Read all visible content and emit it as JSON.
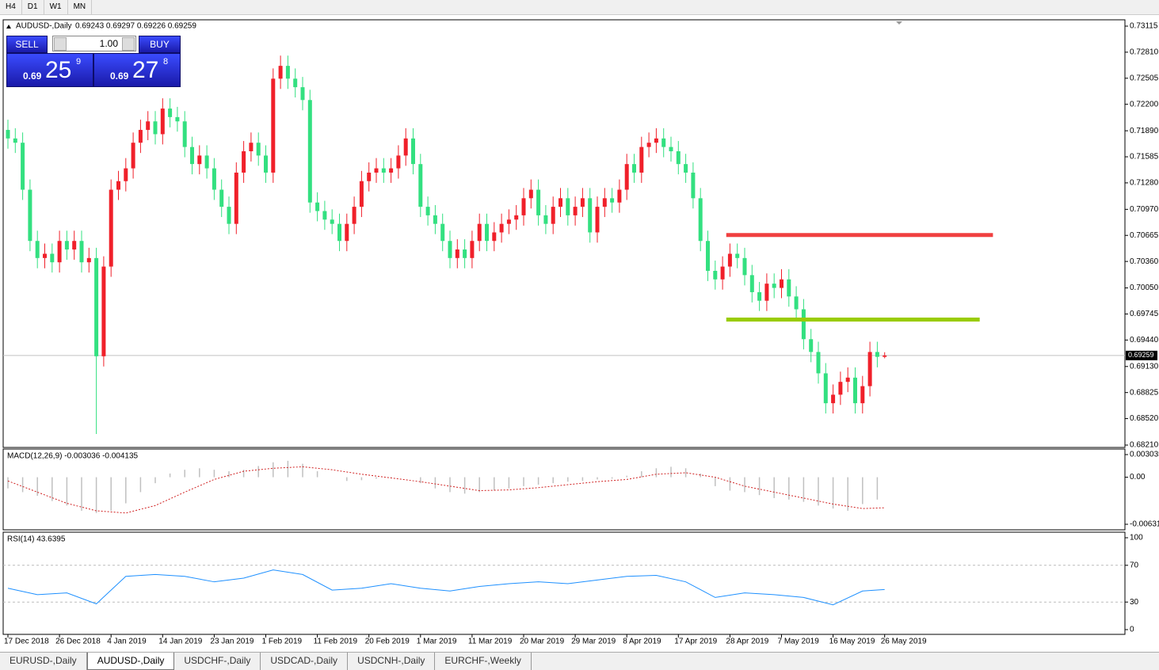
{
  "toolbar": [
    "H4",
    "D1",
    "W1",
    "MN"
  ],
  "tabs": [
    "EURUSD-,Daily",
    "AUDUSD-,Daily",
    "USDCHF-,Daily",
    "USDCAD-,Daily",
    "USDCNH-,Daily",
    "EURCHF-,Weekly"
  ],
  "active_tab": "AUDUSD-,Daily",
  "trade_panel": {
    "sell_label": "SELL",
    "lot": "1.00",
    "buy_label": "BUY",
    "bid": {
      "prefix": "0.69",
      "big": "25",
      "small": "9"
    },
    "ask": {
      "prefix": "0.69",
      "big": "27",
      "small": "8"
    }
  },
  "chart_data": {
    "type": "candlestick",
    "title": "AUDUSD-,Daily",
    "ohlc_text": "0.69243 0.69297 0.69226 0.69259",
    "up_color": "#f0202a",
    "down_color": "#33e080",
    "categories": [
      "17 Dec 2018",
      null,
      null,
      null,
      null,
      null,
      null,
      "26 Dec 2018",
      null,
      null,
      null,
      null,
      null,
      null,
      "4 Jan 2019",
      null,
      null,
      null,
      null,
      null,
      null,
      "14 Jan 2019",
      null,
      null,
      null,
      null,
      null,
      null,
      "23 Jan 2019",
      null,
      null,
      null,
      null,
      null,
      null,
      "1 Feb 2019",
      null,
      null,
      null,
      null,
      null,
      null,
      "11 Feb 2019",
      null,
      null,
      null,
      null,
      null,
      null,
      "20 Feb 2019",
      null,
      null,
      null,
      null,
      null,
      null,
      "1 Mar 2019",
      null,
      null,
      null,
      null,
      null,
      null,
      "11 Mar 2019",
      null,
      null,
      null,
      null,
      null,
      null,
      "20 Mar 2019",
      null,
      null,
      null,
      null,
      null,
      null,
      "29 Mar 2019",
      null,
      null,
      null,
      null,
      null,
      null,
      "8 Apr 2019",
      null,
      null,
      null,
      null,
      null,
      null,
      "17 Apr 2019",
      null,
      null,
      null,
      null,
      null,
      null,
      "28 Apr 2019",
      null,
      null,
      null,
      null,
      null,
      null,
      "7 May 2019",
      null,
      null,
      null,
      null,
      null,
      null,
      "16 May 2019",
      null,
      null,
      null,
      null,
      null,
      null,
      "26 May 2019"
    ],
    "open": [
      0.719,
      0.718,
      0.7175,
      0.712,
      0.706,
      0.704,
      0.7045,
      0.7035,
      0.706,
      0.705,
      0.706,
      0.7035,
      0.704,
      0.6925,
      0.703,
      0.712,
      0.713,
      0.7145,
      0.7175,
      0.719,
      0.72,
      0.7185,
      0.7215,
      0.7205,
      0.72,
      0.717,
      0.715,
      0.716,
      0.7145,
      0.712,
      0.71,
      0.708,
      0.714,
      0.7165,
      0.7175,
      0.716,
      0.714,
      0.725,
      0.7265,
      0.725,
      0.724,
      0.7225,
      0.7105,
      0.7095,
      0.7085,
      0.708,
      0.706,
      0.708,
      0.71,
      0.713,
      0.714,
      0.7145,
      0.714,
      0.7145,
      0.716,
      0.718,
      0.715,
      0.71,
      0.709,
      0.708,
      0.706,
      0.704,
      0.705,
      0.704,
      0.706,
      0.708,
      0.706,
      0.707,
      0.708,
      0.7085,
      0.709,
      0.711,
      0.712,
      0.709,
      0.708,
      0.71,
      0.711,
      0.709,
      0.71,
      0.711,
      0.707,
      0.71,
      0.711,
      0.7105,
      0.712,
      0.715,
      0.714,
      0.717,
      0.7175,
      0.718,
      0.717,
      0.7165,
      0.715,
      0.714,
      0.711,
      0.706,
      0.7025,
      0.7015,
      0.703,
      0.7045,
      0.704,
      0.702,
      0.7,
      0.699,
      0.701,
      0.7005,
      0.7015,
      0.6995,
      0.698,
      0.6945,
      0.693,
      0.6905,
      0.687,
      0.688,
      0.6895,
      0.69,
      0.687,
      0.689,
      0.693,
      0.69243
    ],
    "high": [
      0.7202,
      0.7192,
      0.7187,
      0.7132,
      0.7072,
      0.7057,
      0.7057,
      0.7072,
      0.7072,
      0.7072,
      0.7072,
      0.7052,
      0.7052,
      0.7042,
      0.7132,
      0.7142,
      0.7157,
      0.7187,
      0.7202,
      0.7212,
      0.7212,
      0.7227,
      0.7227,
      0.7217,
      0.7212,
      0.7182,
      0.7172,
      0.7172,
      0.7157,
      0.7132,
      0.7112,
      0.7152,
      0.7177,
      0.7187,
      0.7187,
      0.7172,
      0.7262,
      0.7277,
      0.7277,
      0.7262,
      0.7252,
      0.7237,
      0.7117,
      0.7107,
      0.7097,
      0.7092,
      0.7092,
      0.7112,
      0.7142,
      0.7152,
      0.7157,
      0.7157,
      0.7157,
      0.7172,
      0.7192,
      0.7192,
      0.7162,
      0.7112,
      0.7102,
      0.7092,
      0.7072,
      0.7062,
      0.7062,
      0.7072,
      0.7092,
      0.7092,
      0.7082,
      0.7092,
      0.7097,
      0.7102,
      0.7122,
      0.7132,
      0.7132,
      0.7102,
      0.7112,
      0.7122,
      0.7122,
      0.7112,
      0.7122,
      0.7122,
      0.7112,
      0.7122,
      0.7122,
      0.7132,
      0.7162,
      0.7162,
      0.7182,
      0.7187,
      0.7192,
      0.7192,
      0.7182,
      0.7177,
      0.7162,
      0.7152,
      0.7122,
      0.7072,
      0.7037,
      0.7042,
      0.7057,
      0.7057,
      0.7052,
      0.7032,
      0.7012,
      0.7022,
      0.7022,
      0.7027,
      0.7027,
      0.7007,
      0.6992,
      0.6957,
      0.6942,
      0.6917,
      0.6892,
      0.6907,
      0.6912,
      0.6912,
      0.6902,
      0.6942,
      0.6942,
      0.69297
    ],
    "low": [
      0.7168,
      0.7163,
      0.7108,
      0.7048,
      0.7028,
      0.7028,
      0.7023,
      0.7023,
      0.7038,
      0.7038,
      0.7023,
      0.7023,
      0.6834,
      0.6913,
      0.7018,
      0.7108,
      0.7118,
      0.7133,
      0.7163,
      0.7178,
      0.7173,
      0.7173,
      0.7193,
      0.7188,
      0.7158,
      0.7138,
      0.7138,
      0.7133,
      0.7108,
      0.7088,
      0.7068,
      0.7068,
      0.7128,
      0.7153,
      0.7148,
      0.7128,
      0.7128,
      0.7238,
      0.7238,
      0.7228,
      0.7213,
      0.7093,
      0.7083,
      0.7073,
      0.7068,
      0.7048,
      0.7048,
      0.7068,
      0.7088,
      0.7118,
      0.7128,
      0.7128,
      0.7128,
      0.7133,
      0.7148,
      0.7138,
      0.7088,
      0.7078,
      0.7068,
      0.7048,
      0.7028,
      0.7028,
      0.7028,
      0.7028,
      0.7048,
      0.7048,
      0.7048,
      0.7058,
      0.7068,
      0.7073,
      0.7078,
      0.7098,
      0.7078,
      0.7068,
      0.7068,
      0.7088,
      0.7078,
      0.7078,
      0.7088,
      0.7058,
      0.7058,
      0.7088,
      0.7093,
      0.7093,
      0.7108,
      0.7128,
      0.7128,
      0.7158,
      0.7163,
      0.7158,
      0.7153,
      0.7138,
      0.7128,
      0.7098,
      0.7048,
      0.7013,
      0.7003,
      0.7003,
      0.7018,
      0.7028,
      0.7008,
      0.6988,
      0.6978,
      0.6978,
      0.6993,
      0.6993,
      0.6983,
      0.6968,
      0.6933,
      0.6918,
      0.6893,
      0.6858,
      0.6858,
      0.6868,
      0.6883,
      0.6858,
      0.6858,
      0.6878,
      0.6912,
      0.69226
    ],
    "close": [
      0.718,
      0.7175,
      0.712,
      0.706,
      0.704,
      0.7045,
      0.7035,
      0.706,
      0.705,
      0.706,
      0.7035,
      0.704,
      0.6925,
      0.703,
      0.712,
      0.713,
      0.7145,
      0.7175,
      0.719,
      0.72,
      0.7185,
      0.7215,
      0.7205,
      0.72,
      0.717,
      0.715,
      0.716,
      0.7145,
      0.712,
      0.71,
      0.708,
      0.714,
      0.7165,
      0.7175,
      0.716,
      0.714,
      0.725,
      0.7265,
      0.725,
      0.724,
      0.7225,
      0.7105,
      0.7095,
      0.7085,
      0.708,
      0.706,
      0.708,
      0.71,
      0.713,
      0.714,
      0.7145,
      0.714,
      0.7145,
      0.716,
      0.718,
      0.715,
      0.71,
      0.709,
      0.708,
      0.706,
      0.704,
      0.705,
      0.704,
      0.706,
      0.708,
      0.706,
      0.707,
      0.708,
      0.7085,
      0.709,
      0.711,
      0.712,
      0.709,
      0.708,
      0.71,
      0.711,
      0.709,
      0.71,
      0.711,
      0.707,
      0.71,
      0.711,
      0.7105,
      0.712,
      0.715,
      0.714,
      0.717,
      0.7175,
      0.718,
      0.717,
      0.7165,
      0.715,
      0.714,
      0.711,
      0.706,
      0.7025,
      0.7015,
      0.703,
      0.7045,
      0.704,
      0.702,
      0.7,
      0.699,
      0.701,
      0.7005,
      0.7015,
      0.6995,
      0.698,
      0.6945,
      0.693,
      0.6905,
      0.687,
      0.688,
      0.6895,
      0.69,
      0.687,
      0.689,
      0.693,
      0.69243,
      0.69259
    ],
    "ylim": [
      0.6821,
      0.73115
    ],
    "yticks": [
      0.73115,
      {
        "value": 0.7281,
        "label": "0.72810"
      },
      0.72505,
      {
        "value": 0.722,
        "label": "0.72200"
      },
      {
        "value": 0.7189,
        "label": "0.71890"
      },
      0.71585,
      {
        "value": 0.7128,
        "label": "0.71280"
      },
      {
        "value": 0.7097,
        "label": "0.70970"
      },
      0.70665,
      {
        "value": 0.7036,
        "label": "0.70360"
      },
      {
        "value": 0.7005,
        "label": "0.70050"
      },
      0.69745,
      {
        "value": 0.6944,
        "label": "0.69440"
      },
      {
        "value": 0.6913,
        "label": "0.69130"
      },
      0.68825,
      {
        "value": 0.6852,
        "label": "0.68520"
      },
      {
        "value": 0.6821,
        "label": "0.68210"
      }
    ],
    "current_price": 0.69259,
    "hlines": [
      {
        "value": 0.7067,
        "x": [
          97.5,
          133.7
        ],
        "color": "#f04040"
      },
      {
        "value": 0.6968,
        "x": [
          97.5,
          131.9
        ],
        "color": "#99cc00"
      }
    ],
    "macd": {
      "label": "MACD(12,26,9) -0.003036 -0.004135",
      "ylim": [
        -0.006311,
        0.003035
      ],
      "yticks": [
        0.003035,
        {
          "value": 0,
          "label": "0.00"
        },
        -0.006311
      ],
      "histogram": {
        "color": "#c0c0c0",
        "x": [
          0,
          2,
          4,
          6,
          8,
          10,
          12,
          14,
          16,
          18,
          20,
          22,
          24,
          26,
          28,
          30,
          32,
          34,
          36,
          38,
          40,
          42,
          44,
          46,
          48,
          50,
          52,
          54,
          56,
          58,
          60,
          62,
          64,
          66,
          68,
          70,
          72,
          74,
          76,
          78,
          80,
          82,
          84,
          86,
          88,
          90,
          92,
          94,
          96,
          98,
          100,
          102,
          104,
          106,
          108,
          110,
          112,
          114,
          116,
          118
        ],
        "values": [
          -0.0015,
          -0.002,
          -0.0025,
          -0.0032,
          -0.0038,
          -0.0045,
          -0.0048,
          -0.0045,
          -0.0035,
          -0.002,
          -0.0008,
          0.0005,
          0.001,
          0.0012,
          0.001,
          0.0008,
          0.001,
          0.0015,
          0.002,
          0.0022,
          0.0018,
          0.0008,
          0,
          -0.0005,
          -0.0004,
          -0.0002,
          -0.0001,
          0,
          -0.0008,
          -0.0015,
          -0.002,
          -0.0022,
          -0.002,
          -0.0018,
          -0.0015,
          -0.0012,
          -0.001,
          -0.0008,
          -0.0006,
          -0.0005,
          -0.0003,
          -0.0002,
          0.0002,
          0.0008,
          0.0012,
          0.0014,
          0.0012,
          0.0005,
          -0.0012,
          -0.0018,
          -0.002,
          -0.0024,
          -0.0028,
          -0.003,
          -0.0033,
          -0.0038,
          -0.0042,
          -0.0045,
          -0.0036,
          -0.003
        ]
      },
      "signal": {
        "color": "#d02020",
        "x": [
          0,
          4,
          8,
          12,
          16,
          20,
          24,
          28,
          32,
          36,
          40,
          44,
          48,
          52,
          56,
          60,
          64,
          68,
          72,
          76,
          80,
          84,
          88,
          92,
          96,
          100,
          104,
          108,
          112,
          116,
          119
        ],
        "values": [
          -0.0005,
          -0.002,
          -0.0035,
          -0.0045,
          -0.0048,
          -0.0038,
          -0.002,
          -0.0003,
          0.0008,
          0.0012,
          0.0014,
          0.001,
          0.0004,
          -0.0001,
          -0.0006,
          -0.0012,
          -0.0018,
          -0.0017,
          -0.0014,
          -0.001,
          -0.0006,
          -0.0003,
          0.0004,
          0.0006,
          0,
          -0.0012,
          -0.002,
          -0.0028,
          -0.0036,
          -0.0042,
          -0.0041
        ]
      }
    },
    "rsi": {
      "label": "RSI(14) 43.6395",
      "ylim": [
        0,
        100
      ],
      "yticks": [
        100,
        70,
        30,
        0
      ],
      "levels": [
        70,
        30
      ],
      "color": "#1e90ff",
      "x": [
        0,
        4,
        8,
        12,
        16,
        20,
        24,
        28,
        32,
        36,
        40,
        44,
        48,
        52,
        56,
        60,
        64,
        68,
        72,
        76,
        80,
        84,
        88,
        92,
        96,
        100,
        104,
        108,
        112,
        116,
        119
      ],
      "values": [
        45,
        38,
        40,
        28,
        58,
        60,
        58,
        52,
        56,
        65,
        60,
        43,
        45,
        50,
        45,
        42,
        47,
        50,
        52,
        50,
        54,
        58,
        59,
        52,
        35,
        40,
        38,
        35,
        27,
        42,
        43.6395
      ]
    }
  }
}
